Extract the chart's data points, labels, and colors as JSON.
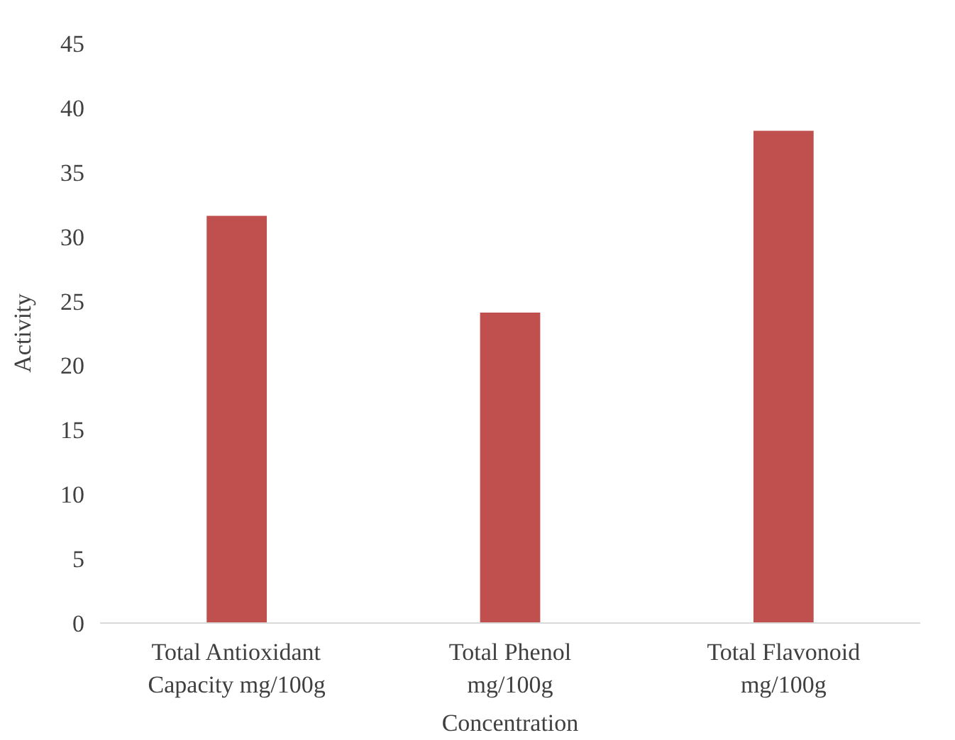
{
  "chart_data": {
    "type": "bar",
    "xlabel": "Concentration",
    "ylabel": "Activity",
    "categories": [
      "Total Antioxidant\nCapacity mg/100g",
      "Total Phenol\nmg/100g",
      "Total Flavonoid\nmg/100g"
    ],
    "values": [
      31.6,
      24.1,
      38.2
    ],
    "color": "#c0504d",
    "ylim": [
      0,
      45
    ],
    "yticks": [
      0,
      5,
      10,
      15,
      20,
      25,
      30,
      35,
      40,
      45
    ],
    "grid": false
  }
}
